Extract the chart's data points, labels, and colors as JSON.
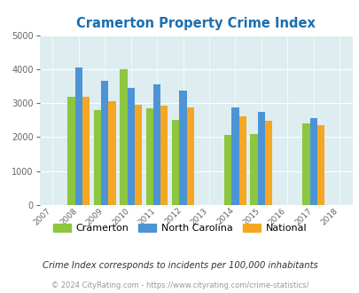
{
  "title": "Cramerton Property Crime Index",
  "years": [
    2007,
    2008,
    2009,
    2010,
    2011,
    2012,
    2013,
    2014,
    2015,
    2016,
    2017,
    2018
  ],
  "bar_years": [
    2008,
    2009,
    2010,
    2011,
    2012,
    2014,
    2015,
    2017
  ],
  "cramerton": [
    3200,
    2800,
    4000,
    2850,
    2500,
    2075,
    2100,
    2400
  ],
  "north_carolina": [
    4050,
    3650,
    3450,
    3550,
    3375,
    2875,
    2750,
    2550
  ],
  "national": [
    3200,
    3050,
    2950,
    2925,
    2875,
    2600,
    2475,
    2350
  ],
  "color_cramerton": "#8dc63f",
  "color_nc": "#4d94d5",
  "color_national": "#f5a623",
  "ylim": [
    0,
    5000
  ],
  "yticks": [
    0,
    1000,
    2000,
    3000,
    4000,
    5000
  ],
  "bg_color": "#deedf0",
  "legend_labels": [
    "Cramerton",
    "North Carolina",
    "National"
  ],
  "footnote1": "Crime Index corresponds to incidents per 100,000 inhabitants",
  "footnote2": "© 2024 CityRating.com - https://www.cityrating.com/crime-statistics/",
  "bar_width": 0.28,
  "title_color": "#1a6faf",
  "footnote1_color": "#333333",
  "footnote2_color": "#999999"
}
